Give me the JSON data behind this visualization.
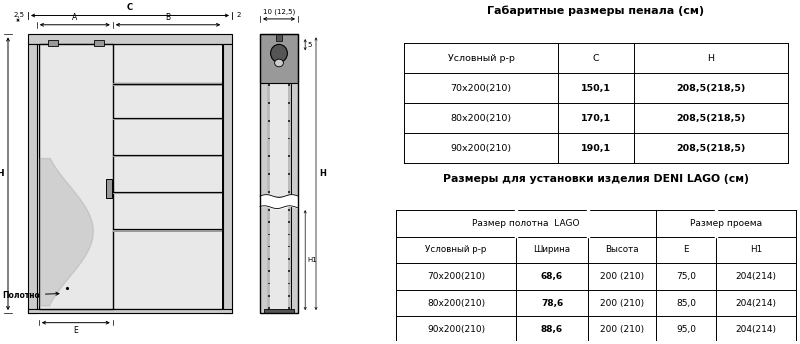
{
  "title1": "Габаритные размеры пенала (см)",
  "table1_header": [
    "Условный р-р",
    "С",
    "Н"
  ],
  "table1_rows": [
    [
      "70х200(210)",
      "150,1",
      "208,5(218,5)"
    ],
    [
      "80х200(210)",
      "170,1",
      "208,5(218,5)"
    ],
    [
      "90х200(210)",
      "190,1",
      "208,5(218,5)"
    ]
  ],
  "title2": "Размеры для установки изделия DENI LAGO (см)",
  "table2_header1_left": "Размер полотна  LAGO",
  "table2_header1_right": "Размер проема",
  "table2_header2": [
    "Условный р-р",
    "Ширина",
    "Высота",
    "E",
    "H1"
  ],
  "table2_rows": [
    [
      "70х200(210)",
      "68,6",
      "200 (210)",
      "75,0",
      "204(214)"
    ],
    [
      "80х200(210)",
      "78,6",
      "200 (210)",
      "85,0",
      "204(214)"
    ],
    [
      "90х200(210)",
      "88,6",
      "200 (210)",
      "95,0",
      "204(214)"
    ]
  ],
  "bg_color": "#ffffff",
  "label_C": "C",
  "label_A": "A",
  "label_B": "B",
  "label_H": "H",
  "label_H1": "H1",
  "label_E": "E",
  "label_25": "2,5",
  "label_2": "2",
  "label_10": "10 (12,5)",
  "label_5": "5",
  "label_polotno": "Полотно"
}
